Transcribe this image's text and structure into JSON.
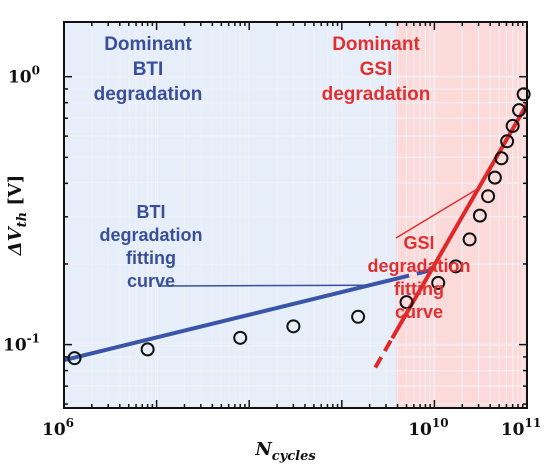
{
  "chart_data": {
    "type": "scatter",
    "x_scale": "log10",
    "y_scale": "log10",
    "x_label": {
      "main": "N",
      "sub": "cycles"
    },
    "y_label": {
      "main": "ΔV",
      "sub": "th",
      "unit": " [V]"
    },
    "xlim": [
      1000000,
      100000000000
    ],
    "ylim": [
      0.058,
      1.6
    ],
    "x_ticks": [
      {
        "value": 1000000,
        "base": "10",
        "exp": "6"
      },
      {
        "value": 10000000000,
        "base": "10",
        "exp": "10"
      },
      {
        "value": 100000000000,
        "base": "10",
        "exp": "11"
      }
    ],
    "y_ticks": [
      {
        "value": 0.1,
        "base": "10",
        "exp": "-1"
      },
      {
        "value": 1,
        "base": "10",
        "exp": "0"
      }
    ],
    "grid": true,
    "regions": [
      {
        "name": "bti",
        "x_range": [
          1000000,
          3800000000
        ],
        "color": "#e6eefa",
        "label": [
          "Dominant",
          "BTI",
          "degradation"
        ],
        "label_color": "#3a4f9a"
      },
      {
        "name": "gsi",
        "x_range": [
          3800000000,
          100000000000
        ],
        "color": "#fcdada",
        "label": [
          "Dominant",
          "GSI",
          "degradation"
        ],
        "label_color": "#e03030"
      }
    ],
    "series": [
      {
        "marker": "open-circle",
        "x": [
          1300000,
          8000000,
          80000000,
          300000000,
          1500000000,
          5000000000,
          11000000000,
          17000000000,
          24000000000,
          31000000000,
          38000000000,
          45000000000,
          53000000000,
          61000000000,
          70000000000,
          82000000000,
          92000000000
        ],
        "y": [
          0.089,
          0.096,
          0.106,
          0.117,
          0.127,
          0.144,
          0.17,
          0.196,
          0.247,
          0.303,
          0.358,
          0.42,
          0.496,
          0.574,
          0.655,
          0.75,
          0.86
        ]
      }
    ],
    "fits": [
      {
        "name": "bti-fit",
        "color": "#3a55a8",
        "x_start": 1000000,
        "x_break": 3800000000,
        "x_end": 10000000000,
        "y_start": 0.0875,
        "slope": 0.0847
      },
      {
        "name": "gsi-fit",
        "color": "#e02828",
        "x_start": 2300000000,
        "x_break": 3500000000,
        "x_end": 100000000000,
        "y_at_ref": 0.111,
        "x_ref": 3800000000,
        "slope": 0.6
      }
    ],
    "annotations": [
      {
        "name": "bti-fit-label",
        "text": [
          "BTI",
          "degradation",
          "fitting",
          "curve"
        ],
        "color": "#3a4f9a",
        "pointer_to_x": 2000000000
      },
      {
        "name": "gsi-fit-label",
        "text": [
          "GSI",
          "degradation",
          "fitting",
          "curve"
        ],
        "color": "#e03030",
        "pointer_to_x": 30000000000
      }
    ]
  }
}
